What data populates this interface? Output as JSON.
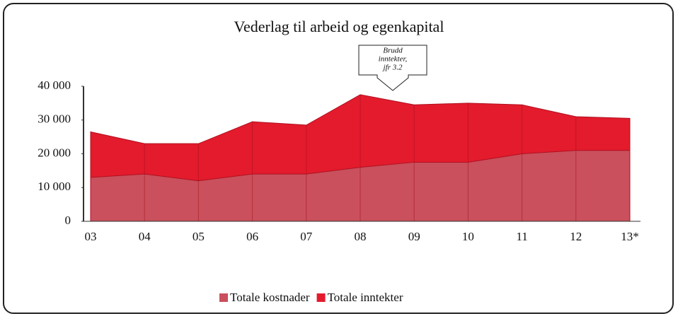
{
  "chart_data": {
    "type": "area",
    "title": "Vederlag til arbeid og egenkapital",
    "annotation": [
      "Brudd",
      "inntekter,",
      "jfr 3.2"
    ],
    "categories": [
      "03",
      "04",
      "05",
      "06",
      "07",
      "08",
      "09",
      "10",
      "11",
      "12",
      "13*"
    ],
    "series": [
      {
        "name": "Totale kostnader",
        "color": "#c9505c",
        "values": [
          13000,
          14000,
          12000,
          14000,
          14000,
          16000,
          17500,
          17500,
          20000,
          21000,
          21000
        ]
      },
      {
        "name": "Totale inntekter",
        "color": "#e31b2c",
        "values": [
          26500,
          23000,
          23000,
          29500,
          28500,
          37500,
          34500,
          35000,
          34500,
          31000,
          30500
        ]
      }
    ],
    "ylim": [
      0,
      40000
    ],
    "yticks": [
      0,
      {
        "value": 10000,
        "label": "10 000"
      },
      {
        "value": 20000,
        "label": "20 000"
      },
      {
        "value": 30000,
        "label": "30 000"
      },
      {
        "value": 40000,
        "label": "40 000"
      }
    ],
    "legend": "bottom"
  }
}
